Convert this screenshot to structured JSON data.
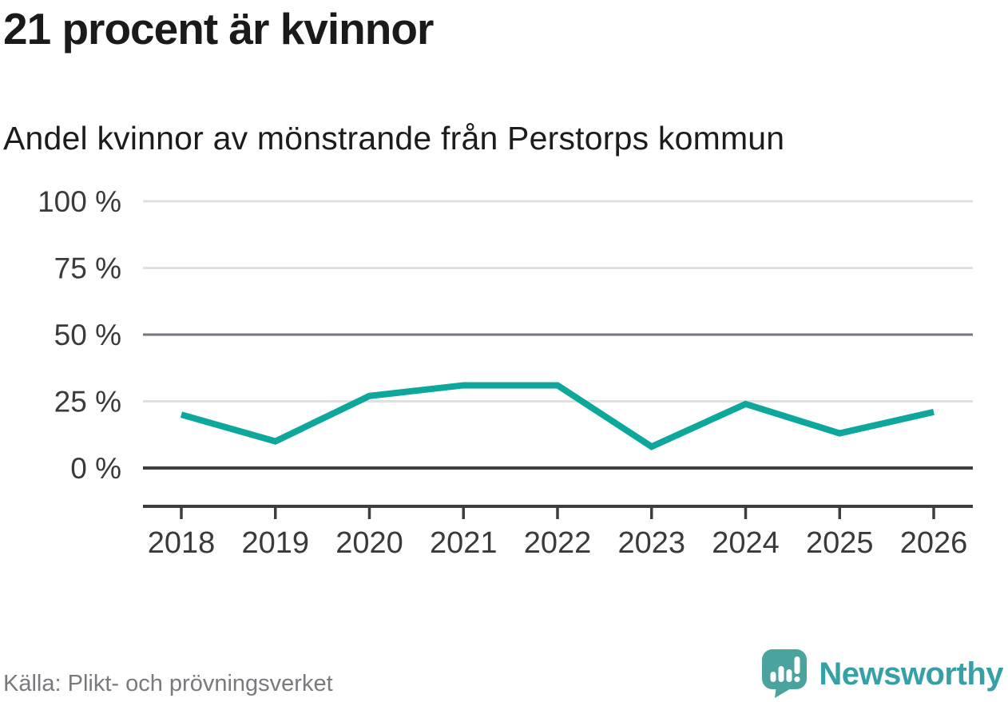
{
  "chart_data": {
    "type": "line",
    "title": "21 procent är kvinnor",
    "subtitle": "Andel kvinnor av mönstrande från Perstorps kommun",
    "categories": [
      "2018",
      "2019",
      "2020",
      "2021",
      "2022",
      "2023",
      "2024",
      "2025",
      "2026"
    ],
    "series": [
      {
        "name": "Andel kvinnor av mönstrande (%)",
        "values": [
          20,
          10,
          27,
          31,
          31,
          8,
          24,
          13,
          21
        ],
        "color": "#0da79b"
      }
    ],
    "unit": "%",
    "ylim": [
      0,
      100
    ],
    "yticks": [
      {
        "value": 100,
        "label": "100 %"
      },
      {
        "value": 75,
        "label": "75 %"
      },
      {
        "value": 50,
        "label": "50 %"
      },
      {
        "value": 25,
        "label": "25 %"
      },
      {
        "value": 0,
        "label": "0 %"
      }
    ],
    "grid": "horizontal; light gray lines at 25/75/100, medium gray at 50, dark baseline at 0",
    "legend": "none",
    "colors": {
      "line": "#0da79b",
      "grid_light": "#e0e0e1",
      "grid_mid": "#74747c",
      "axis_dark": "#3e3e3e",
      "tick_label": "#3a3a3a"
    }
  },
  "footer": {
    "source": "Källa: Plikt- och prövningsverket",
    "brand_name": "Newsworthy",
    "brand_text_color": "#35a0a6",
    "logo_color": "#4aa39d",
    "logo_icon": "speech-bubble-with-bar-chart-and-exclamation"
  }
}
